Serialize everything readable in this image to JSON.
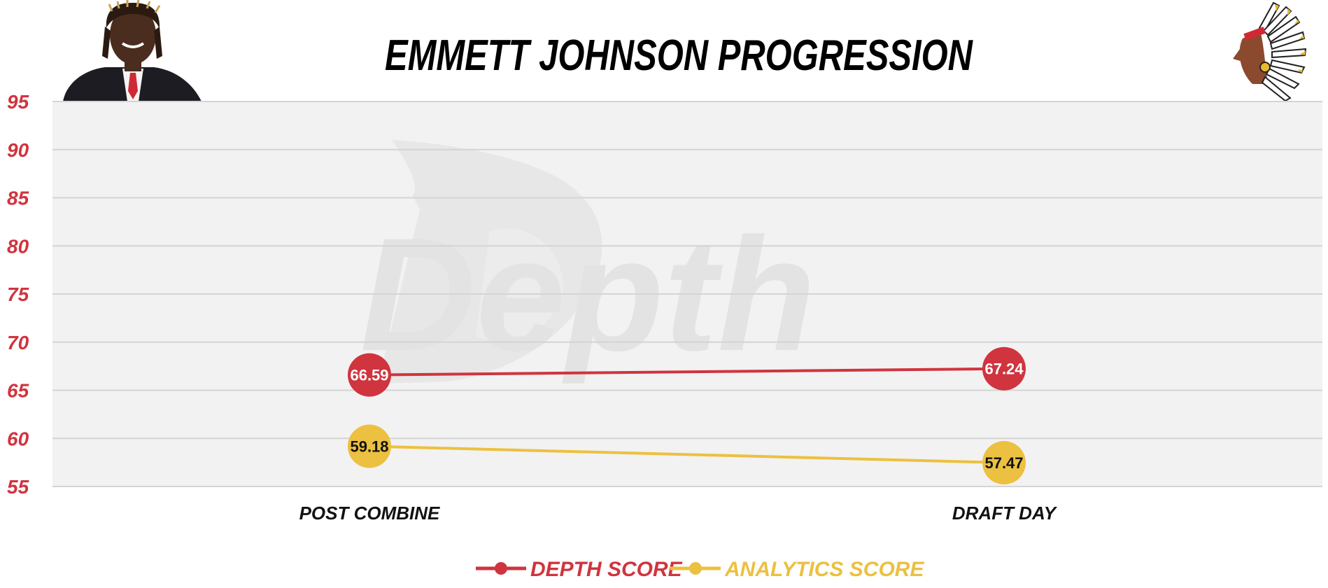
{
  "colors": {
    "red": "#d0343f",
    "gold": "#ecc040",
    "plot_bg": "#f2f2f2",
    "grid": "#d4d4d4",
    "watermark": "#e4e4e4"
  },
  "icons": {
    "player_photo": "player-photo-icon",
    "team_logo": "team-logo-icon",
    "watermark": "depth-watermark-icon"
  },
  "chart_data": {
    "type": "line",
    "title": "EMMETT JOHNSON PROGRESSION",
    "categories": [
      "POST COMBINE",
      "DRAFT DAY"
    ],
    "series": [
      {
        "name": "DEPTH SCORE",
        "values": [
          66.59,
          67.24
        ],
        "color": "#d0343f",
        "label_color": "#ffffff"
      },
      {
        "name": "ANALYTICS SCORE",
        "values": [
          59.18,
          57.47
        ],
        "color": "#ecc040",
        "label_color": "#111111"
      }
    ],
    "ylim": [
      55,
      95
    ],
    "yticks": [
      95,
      90,
      85,
      80,
      75,
      70,
      65,
      60,
      55
    ],
    "grid": true,
    "legend": "bottom-center",
    "watermark_text": "Depth"
  }
}
